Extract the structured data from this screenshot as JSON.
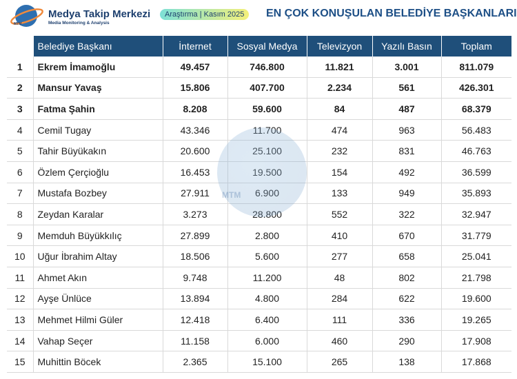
{
  "header": {
    "brand": "Medya Takip Merkezi",
    "tagline": "Media Monitoring & Analysis",
    "logo_mark": "MTM",
    "badge": "Araştırma | Kasım 2025",
    "title": "EN ÇOK KONUŞULAN BELEDİYE BAŞKANLARI"
  },
  "table": {
    "columns": [
      "",
      "Belediye Başkanı",
      "İnternet",
      "Sosyal Medya",
      "Televizyon",
      "Yazılı Basın",
      "Toplam"
    ],
    "rows": [
      [
        "1",
        "Ekrem İmamoğlu",
        "49.457",
        "746.800",
        "11.821",
        "3.001",
        "811.079"
      ],
      [
        "2",
        "Mansur Yavaş",
        "15.806",
        "407.700",
        "2.234",
        "561",
        "426.301"
      ],
      [
        "3",
        "Fatma Şahin",
        "8.208",
        "59.600",
        "84",
        "487",
        "68.379"
      ],
      [
        "4",
        "Cemil Tugay",
        "43.346",
        "11.700",
        "474",
        "963",
        "56.483"
      ],
      [
        "5",
        "Tahir Büyükakın",
        "20.600",
        "25.100",
        "232",
        "831",
        "46.763"
      ],
      [
        "6",
        "Özlem Çerçioğlu",
        "16.453",
        "19.500",
        "154",
        "492",
        "36.599"
      ],
      [
        "7",
        "Mustafa Bozbey",
        "27.911",
        "6.900",
        "133",
        "949",
        "35.893"
      ],
      [
        "8",
        "Zeydan Karalar",
        "3.273",
        "28.800",
        "552",
        "322",
        "32.947"
      ],
      [
        "9",
        "Memduh Büyükkılıç",
        "27.899",
        "2.800",
        "410",
        "670",
        "31.779"
      ],
      [
        "10",
        "Uğur İbrahim Altay",
        "18.506",
        "5.600",
        "277",
        "658",
        "25.041"
      ],
      [
        "11",
        "Ahmet Akın",
        "9.748",
        "11.200",
        "48",
        "802",
        "21.798"
      ],
      [
        "12",
        "Ayşe Ünlüce",
        "13.894",
        "4.800",
        "284",
        "622",
        "19.600"
      ],
      [
        "13",
        "Mehmet Hilmi Güler",
        "12.418",
        "6.400",
        "111",
        "336",
        "19.265"
      ],
      [
        "14",
        "Vahap Seçer",
        "11.158",
        "6.000",
        "460",
        "290",
        "17.908"
      ],
      [
        "15",
        "Muhittin Böcek",
        "2.365",
        "15.100",
        "265",
        "138",
        "17.868"
      ]
    ]
  }
}
